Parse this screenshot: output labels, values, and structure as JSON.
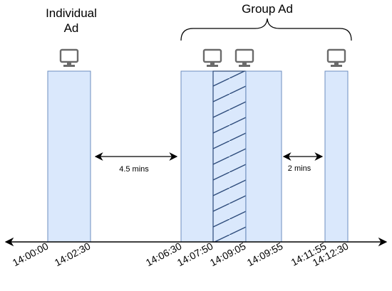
{
  "labels": {
    "individual_line1": "Individual",
    "individual_line2": "Ad",
    "group": "Group Ad",
    "gap_left": "4.5 mins",
    "gap_right": "2 mins"
  },
  "ticks": [
    "14:00:00",
    "14:02:30",
    "14:06:30",
    "14:07:50",
    "14:09:05",
    "14:09:55",
    "14:11:55",
    "14:12:30"
  ],
  "monitor_icons": [
    "monitor-icon",
    "monitor-icon",
    "monitor-icon",
    "monitor-icon"
  ],
  "colors": {
    "bar_fill": "#dae8fc",
    "bar_stroke": "#6c8ebf",
    "hatch": "#2c4a7a",
    "line": "#000000",
    "monitor": "#6b6b6b"
  }
}
